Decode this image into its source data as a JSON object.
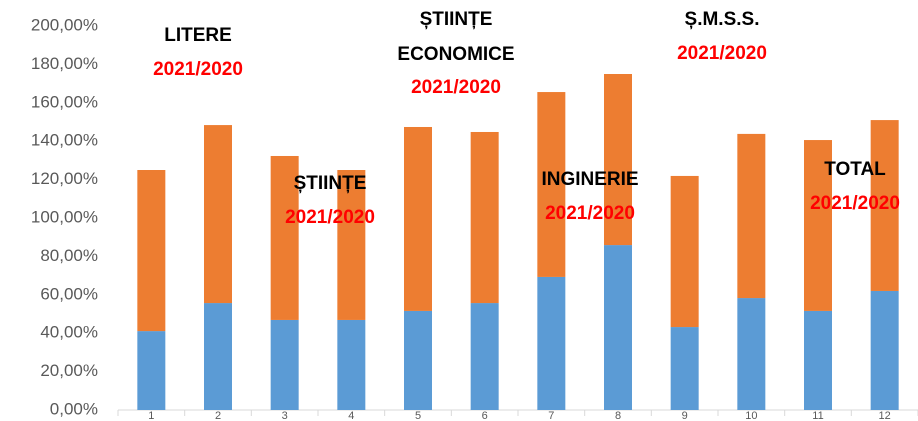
{
  "chart_data": {
    "type": "stacked_bar",
    "categories": [
      "1",
      "2",
      "3",
      "4",
      "5",
      "6",
      "7",
      "8",
      "9",
      "10",
      "11",
      "12"
    ],
    "series": [
      {
        "color": "#5b9bd5",
        "values": [
          41.1,
          55.7,
          46.9,
          46.9,
          51.6,
          55.7,
          69.3,
          85.9,
          43.2,
          58.3,
          51.6,
          62.0
        ]
      },
      {
        "color": "#ed7d31",
        "values": [
          83.9,
          92.7,
          85.4,
          78.1,
          95.8,
          89.1,
          96.3,
          89.1,
          78.7,
          85.5,
          89.0,
          89.0
        ]
      }
    ],
    "ylim": [
      0,
      200
    ],
    "yticks": [
      {
        "value": 0,
        "label": "0,00%"
      },
      {
        "value": 20,
        "label": "20,00%"
      },
      {
        "value": 40,
        "label": "40,00%"
      },
      {
        "value": 60,
        "label": "60,00%"
      },
      {
        "value": 80,
        "label": "80,00%"
      },
      {
        "value": 100,
        "label": "100,00%"
      },
      {
        "value": 120,
        "label": "120,00%"
      },
      {
        "value": 140,
        "label": "140,00%"
      },
      {
        "value": 160,
        "label": "160,00%"
      },
      {
        "value": 180,
        "label": "180,00%"
      },
      {
        "value": 200,
        "label": "200,00%"
      }
    ],
    "annotations": [
      {
        "lines": [
          "LITERE"
        ],
        "period": "2021/2020"
      },
      {
        "lines": [
          "ȘTIINȚE"
        ],
        "period": "2021/2020"
      },
      {
        "lines": [
          "ȘTIINȚE",
          "ECONOMICE"
        ],
        "period": "2021/2020"
      },
      {
        "lines": [
          "INGINERIE"
        ],
        "period": "2021/2020"
      },
      {
        "lines": [
          "Ș.M.S.S."
        ],
        "period": "2021/2020"
      },
      {
        "lines": [
          "TOTAL"
        ],
        "period": "2021/2020"
      }
    ],
    "annotation_color": "#000000",
    "period_color": "#ff0000"
  }
}
